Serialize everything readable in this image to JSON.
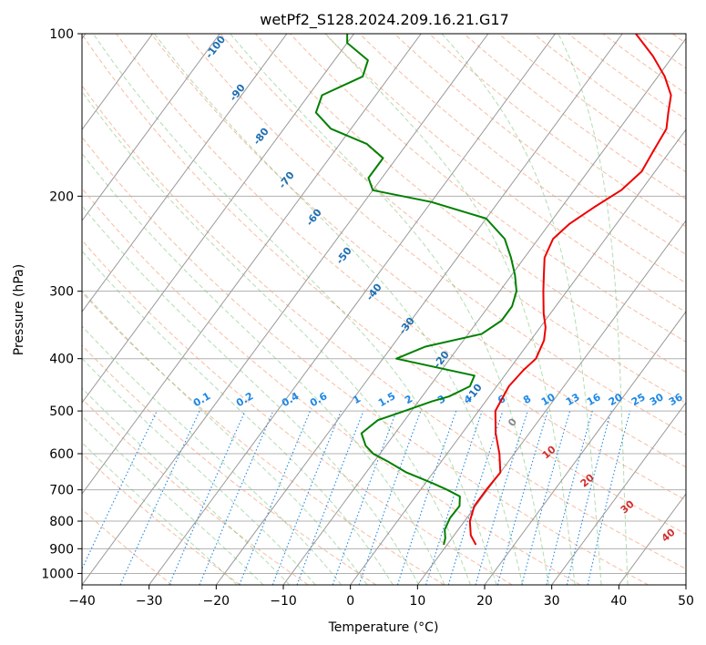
{
  "title": "wetPf2_S128.2024.209.16.21.G17",
  "colors": {
    "temperature": "#ee0000",
    "dewpoint": "#008000",
    "dry_adiabat": "#f4a582",
    "moist_adiabat": "#66bb66",
    "mixing_ratio": "#1e88e5",
    "isotherm": "#999999",
    "grid": "#b0b0b0",
    "mixing_label": "#1e88e5",
    "dry_label": "#d32f2f",
    "moist_label": "#1f6fb2"
  },
  "chart_data": {
    "type": "line",
    "title": "wetPf2_S128.2024.209.16.21.G17",
    "xlabel": "Temperature (°C)",
    "ylabel": "Pressure (hPa)",
    "xlim": [
      -40,
      50
    ],
    "ylim": [
      1050,
      100
    ],
    "y_scale": "log",
    "grid": true,
    "x_ticks": [
      -40,
      -30,
      -20,
      -10,
      0,
      10,
      20,
      30,
      40,
      50
    ],
    "y_ticks": [
      100,
      200,
      300,
      400,
      500,
      600,
      700,
      800,
      900,
      1000
    ],
    "x_tick_labels": [
      "−40",
      "−30",
      "−20",
      "−10",
      "0",
      "10",
      "20",
      "30",
      "40",
      "50"
    ],
    "y_tick_labels": [
      "100",
      "200",
      "300",
      "400",
      "500",
      "600",
      "700",
      "800",
      "900",
      "1000"
    ],
    "series": [
      {
        "name": "",
        "role": "temperature",
        "points": [
          [
            885,
            14.3
          ],
          [
            850,
            12.5
          ],
          [
            800,
            10.8
          ],
          [
            750,
            9.8
          ],
          [
            700,
            9.8
          ],
          [
            650,
            10.0
          ],
          [
            600,
            7.8
          ],
          [
            550,
            5.0
          ],
          [
            500,
            2.5
          ],
          [
            450,
            1.8
          ],
          [
            420,
            2.2
          ],
          [
            400,
            2.8
          ],
          [
            370,
            2.0
          ],
          [
            350,
            0.8
          ],
          [
            330,
            -1.0
          ],
          [
            300,
            -3.5
          ],
          [
            280,
            -5.2
          ],
          [
            260,
            -7.0
          ],
          [
            240,
            -7.8
          ],
          [
            225,
            -7.0
          ],
          [
            210,
            -5.2
          ],
          [
            195,
            -3.0
          ],
          [
            180,
            -2.0
          ],
          [
            165,
            -2.5
          ],
          [
            150,
            -3.0
          ],
          [
            140,
            -4.5
          ],
          [
            130,
            -6.0
          ],
          [
            120,
            -9.0
          ],
          [
            110,
            -13.0
          ],
          [
            100,
            -18.0
          ]
        ]
      },
      {
        "name": "",
        "role": "dewpoint",
        "points": [
          [
            885,
            9.5
          ],
          [
            860,
            9.0
          ],
          [
            830,
            8.0
          ],
          [
            790,
            7.5
          ],
          [
            750,
            7.6
          ],
          [
            720,
            6.6
          ],
          [
            700,
            4.0
          ],
          [
            680,
            1.0
          ],
          [
            650,
            -4.0
          ],
          [
            620,
            -8.0
          ],
          [
            600,
            -11.0
          ],
          [
            580,
            -13.0
          ],
          [
            550,
            -15.0
          ],
          [
            520,
            -14.0
          ],
          [
            500,
            -11.0
          ],
          [
            480,
            -8.0
          ],
          [
            470,
            -6.0
          ],
          [
            450,
            -4.0
          ],
          [
            430,
            -4.5
          ],
          [
            400,
            -18.0
          ],
          [
            380,
            -15.0
          ],
          [
            360,
            -8.0
          ],
          [
            340,
            -6.5
          ],
          [
            320,
            -6.5
          ],
          [
            300,
            -7.5
          ],
          [
            280,
            -9.5
          ],
          [
            260,
            -12.0
          ],
          [
            240,
            -15.0
          ],
          [
            220,
            -20.0
          ],
          [
            205,
            -30.0
          ],
          [
            195,
            -40.0
          ],
          [
            185,
            -42.0
          ],
          [
            170,
            -42.0
          ],
          [
            160,
            -46.0
          ],
          [
            150,
            -53.0
          ],
          [
            140,
            -57.0
          ],
          [
            130,
            -58.0
          ],
          [
            120,
            -54.0
          ],
          [
            112,
            -55.0
          ],
          [
            104,
            -60.0
          ],
          [
            100,
            -61.0
          ]
        ]
      }
    ],
    "mixing_ratio_lines": [
      0.1,
      0.2,
      0.4,
      0.6,
      1,
      1.5,
      2,
      3,
      4,
      6,
      8,
      10,
      13,
      16,
      20,
      25,
      30,
      36
    ],
    "mixing_ratio_labels": [
      "0.1",
      "0.2",
      "0.4",
      "0.6",
      "1",
      "1.5",
      "2",
      "3",
      "4",
      "6",
      "8",
      "10",
      "13",
      "16",
      "20",
      "25",
      "30",
      "36"
    ],
    "moist_adiabat_labels": [
      "-100",
      "-90",
      "-80",
      "-70",
      "-60",
      "-50",
      "-40",
      "-30",
      "-20",
      "-10",
      "0"
    ],
    "dry_adiabat_labels": [
      "10",
      "20",
      "30",
      "40"
    ]
  }
}
